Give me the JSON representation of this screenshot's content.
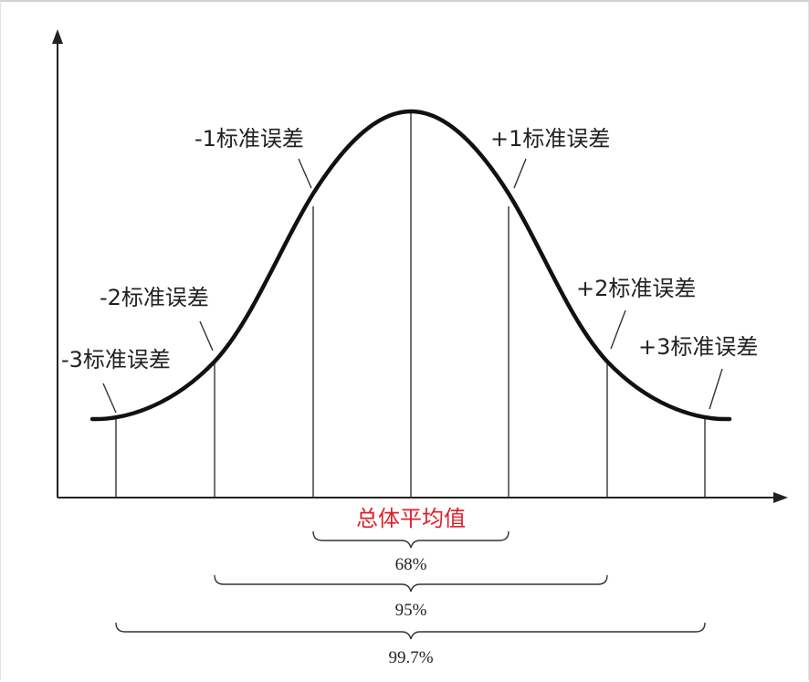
{
  "labels": {
    "minus3": "-3标准误差",
    "minus2": "-2标准误差",
    "minus1": "-1标准误差",
    "plus1": "+1标准误差",
    "plus2": "+2标准误差",
    "plus3": "+3标准误差",
    "mean": "总体平均值"
  },
  "intervals": {
    "one_sd": "68%",
    "two_sd": "95%",
    "three_sd": "99.7%"
  },
  "colors": {
    "curve": "#111111",
    "mean_label": "#e0202a",
    "lines": "#333333"
  }
}
